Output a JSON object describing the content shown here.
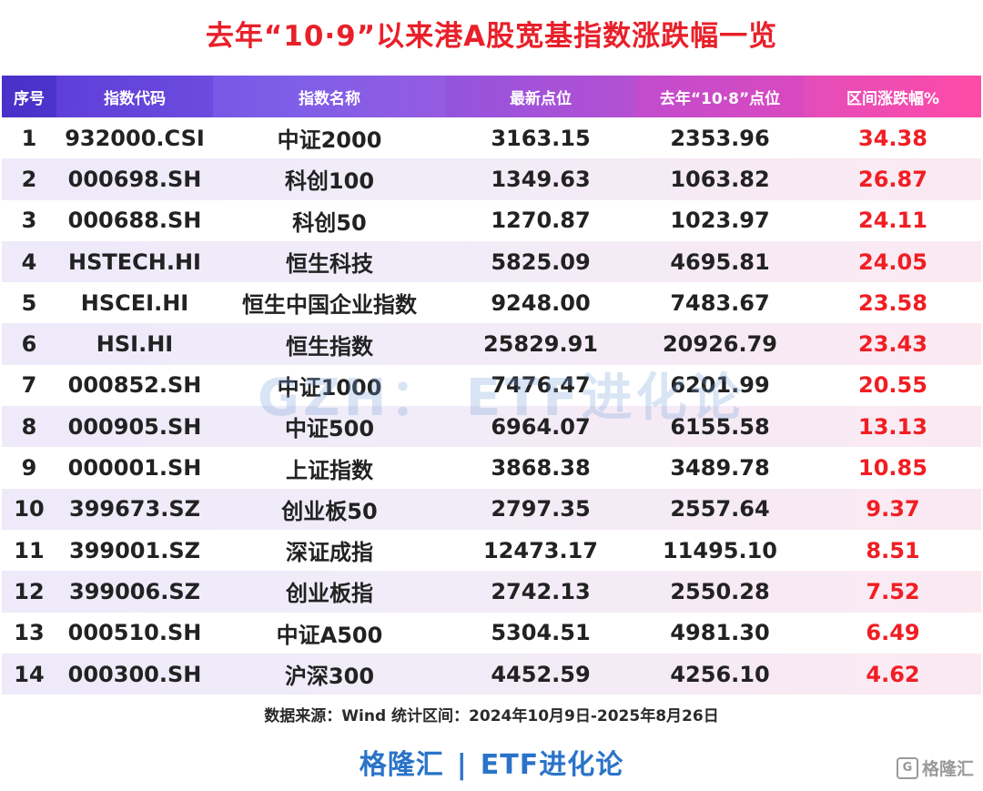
{
  "title": "去年“10·9”以来港A股宽基指数涨跌幅一览",
  "table": {
    "headers": [
      "序号",
      "指数代码",
      "指数名称",
      "最新点位",
      "去年“10·8”点位",
      "区间涨跌幅%"
    ],
    "rows": [
      [
        "1",
        "932000.CSI",
        "中证2000",
        "3163.15",
        "2353.96",
        "34.38"
      ],
      [
        "2",
        "000698.SH",
        "科创100",
        "1349.63",
        "1063.82",
        "26.87"
      ],
      [
        "3",
        "000688.SH",
        "科创50",
        "1270.87",
        "1023.97",
        "24.11"
      ],
      [
        "4",
        "HSTECH.HI",
        "恒生科技",
        "5825.09",
        "4695.81",
        "24.05"
      ],
      [
        "5",
        "HSCEI.HI",
        "恒生中国企业指数",
        "9248.00",
        "7483.67",
        "23.58"
      ],
      [
        "6",
        "HSI.HI",
        "恒生指数",
        "25829.91",
        "20926.79",
        "23.43"
      ],
      [
        "7",
        "000852.SH",
        "中证1000",
        "7476.47",
        "6201.99",
        "20.55"
      ],
      [
        "8",
        "000905.SH",
        "中证500",
        "6964.07",
        "6155.58",
        "13.13"
      ],
      [
        "9",
        "000001.SH",
        "上证指数",
        "3868.38",
        "3489.78",
        "10.85"
      ],
      [
        "10",
        "399673.SZ",
        "创业板50",
        "2797.35",
        "2557.64",
        "9.37"
      ],
      [
        "11",
        "399001.SZ",
        "深证成指",
        "12473.17",
        "11495.10",
        "8.51"
      ],
      [
        "12",
        "399006.SZ",
        "创业板指",
        "2742.13",
        "2550.28",
        "7.52"
      ],
      [
        "13",
        "000510.SH",
        "中证A500",
        "5304.51",
        "4981.30",
        "6.49"
      ],
      [
        "14",
        "000300.SH",
        "沪深300",
        "4452.59",
        "4256.10",
        "4.62"
      ]
    ]
  },
  "watermark": "GZH： ETF进化论",
  "source": "数据来源：Wind 统计区间：2024年10月9日-2025年8月26日",
  "footer": {
    "brand_left": "格隆汇",
    "separator": "|",
    "brand_right": "ETF进化论"
  },
  "corner_logo": {
    "mark": "G",
    "text": "格隆汇"
  },
  "colors": {
    "title": "#e8202a",
    "change_value": "#f01e23",
    "brand": "#2a73c9"
  }
}
